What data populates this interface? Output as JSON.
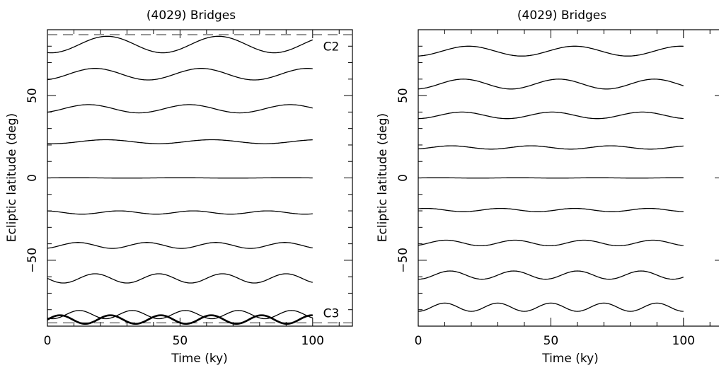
{
  "chart_data": [
    {
      "type": "line",
      "title": "(4029) Bridges",
      "xlabel": "Time (ky)",
      "ylabel": "Ecliptic latitude (deg)",
      "xlim": [
        0,
        115
      ],
      "ylim": [
        -90,
        90
      ],
      "x_ticks": [
        0,
        50,
        100
      ],
      "y_ticks": [
        -50,
        0,
        50
      ],
      "x_tick_labels": [
        "0",
        "50",
        "100"
      ],
      "y_tick_labels": [
        "−50",
        "0",
        "50"
      ],
      "x_range": [
        0,
        100
      ],
      "reference_lines": [
        87,
        -88
      ],
      "annotations": [
        {
          "text": "C2",
          "x": 107,
          "y": 80
        },
        {
          "text": "C3",
          "x": 107,
          "y": -82
        }
      ],
      "series": [
        {
          "baseline": 81,
          "amplitude": 5,
          "period": 42,
          "phase": 12,
          "bold": false
        },
        {
          "baseline": 63,
          "amplitude": 3.5,
          "period": 40,
          "phase": 8,
          "bold": false
        },
        {
          "baseline": 42,
          "amplitude": 2.5,
          "period": 38,
          "phase": 6,
          "bold": false
        },
        {
          "baseline": 22,
          "amplitude": 1.2,
          "period": 40,
          "phase": 12,
          "bold": false
        },
        {
          "baseline": 0,
          "amplitude": 0.1,
          "period": 40,
          "phase": 0,
          "bold": false
        },
        {
          "baseline": -21,
          "amplitude": 1.0,
          "period": 28,
          "phase": 20,
          "bold": false
        },
        {
          "baseline": -41,
          "amplitude": 1.8,
          "period": 26,
          "phase": 5,
          "bold": false
        },
        {
          "baseline": -61,
          "amplitude": 2.8,
          "period": 24,
          "phase": 12,
          "bold": false
        },
        {
          "baseline": -83,
          "amplitude": 2.5,
          "period": 20,
          "phase": 7,
          "bold": false
        },
        {
          "baseline": -86,
          "amplitude": 2.6,
          "period": 19,
          "phase": 0,
          "bold": true
        }
      ]
    },
    {
      "type": "line",
      "title": "(4029) Bridges",
      "xlabel": "Time (ky)",
      "ylabel": "Ecliptic latitude (deg)",
      "xlim": [
        0,
        115
      ],
      "ylim": [
        -90,
        90
      ],
      "x_ticks": [
        0,
        50,
        100
      ],
      "y_ticks": [
        -50,
        0,
        50
      ],
      "x_tick_labels": [
        "0",
        "50",
        "100"
      ],
      "y_tick_labels": [
        "−50",
        "0",
        "50"
      ],
      "x_range": [
        0,
        100
      ],
      "reference_lines": [],
      "annotations": [],
      "series": [
        {
          "baseline": 77,
          "amplitude": 3,
          "period": 40,
          "phase": 9,
          "bold": false
        },
        {
          "baseline": 57,
          "amplitude": 3,
          "period": 36,
          "phase": 8,
          "bold": false
        },
        {
          "baseline": 38,
          "amplitude": 2,
          "period": 34,
          "phase": 8,
          "bold": false
        },
        {
          "baseline": 18.5,
          "amplitude": 1,
          "period": 30,
          "phase": 5,
          "bold": false
        },
        {
          "baseline": 0,
          "amplitude": 0.1,
          "period": 30,
          "phase": 0,
          "bold": false
        },
        {
          "baseline": -19.5,
          "amplitude": 1,
          "period": 28,
          "phase": 24,
          "bold": false
        },
        {
          "baseline": -39.5,
          "amplitude": 1.7,
          "period": 26,
          "phase": 4,
          "bold": false
        },
        {
          "baseline": -59,
          "amplitude": 2.5,
          "period": 24,
          "phase": 6,
          "bold": false
        },
        {
          "baseline": -78.5,
          "amplitude": 2.5,
          "period": 20,
          "phase": 5,
          "bold": false
        }
      ]
    }
  ]
}
